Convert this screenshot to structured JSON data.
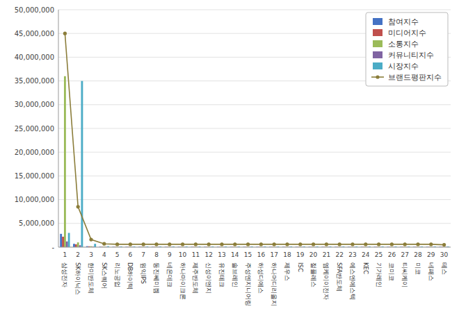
{
  "chart_data": {
    "type": "bar",
    "categories": [
      "1",
      "2",
      "3",
      "4",
      "5",
      "6",
      "7",
      "8",
      "9",
      "10",
      "11",
      "12",
      "13",
      "14",
      "15",
      "16",
      "17",
      "18",
      "19",
      "20",
      "21",
      "22",
      "23",
      "24",
      "25",
      "26",
      "27",
      "28",
      "29",
      "30"
    ],
    "annotations": [
      "삼성전자",
      "SK하이닉스",
      "한미반도체",
      "SK스퀘어",
      "리노공업",
      "DB하이텍",
      "원익IPS",
      "동진쎄미켐",
      "네온데크",
      "하나마이크론",
      "제주반도체",
      "신성이엔지",
      "유진테크",
      "솔브레인",
      "주성엔지니어링",
      "하성디에스",
      "하나머디리올지",
      "제우스",
      "ISC",
      "절플레스",
      "엠케이이전자",
      "SFA반도체",
      "에스엔에스텍",
      "KEC",
      "기가레인",
      "코미코",
      "티씨케이",
      "미코",
      "네패스",
      "테스"
    ],
    "series": [
      {
        "name": "참여지수",
        "color": "#4472C4",
        "values": [
          2800000,
          700000,
          200000,
          100000,
          80000,
          80000,
          80000,
          80000,
          80000,
          80000,
          80000,
          80000,
          80000,
          80000,
          80000,
          80000,
          80000,
          80000,
          80000,
          80000,
          80000,
          80000,
          80000,
          80000,
          80000,
          80000,
          80000,
          80000,
          80000,
          80000
        ]
      },
      {
        "name": "미디어지수",
        "color": "#C0504D",
        "values": [
          2200000,
          600000,
          180000,
          80000,
          70000,
          70000,
          70000,
          70000,
          70000,
          70000,
          70000,
          70000,
          70000,
          70000,
          70000,
          70000,
          70000,
          70000,
          70000,
          70000,
          70000,
          70000,
          70000,
          70000,
          70000,
          70000,
          70000,
          70000,
          70000,
          70000
        ]
      },
      {
        "name": "소통지수",
        "color": "#9BBB59",
        "values": [
          36000000,
          1000000,
          200000,
          100000,
          80000,
          80000,
          80000,
          80000,
          80000,
          80000,
          80000,
          80000,
          80000,
          80000,
          80000,
          80000,
          80000,
          80000,
          80000,
          80000,
          80000,
          80000,
          80000,
          80000,
          80000,
          80000,
          80000,
          80000,
          80000,
          80000
        ]
      },
      {
        "name": "커뮤니티지수",
        "color": "#8064A2",
        "values": [
          1200000,
          400000,
          120000,
          70000,
          60000,
          60000,
          60000,
          60000,
          60000,
          60000,
          60000,
          60000,
          60000,
          60000,
          60000,
          60000,
          60000,
          60000,
          60000,
          60000,
          60000,
          60000,
          60000,
          60000,
          60000,
          60000,
          60000,
          60000,
          60000,
          60000
        ]
      },
      {
        "name": "시장지수",
        "color": "#4BACC6",
        "values": [
          3000000,
          35000000,
          700000,
          200000,
          150000,
          150000,
          150000,
          150000,
          150000,
          150000,
          150000,
          150000,
          150000,
          150000,
          150000,
          150000,
          150000,
          150000,
          150000,
          150000,
          150000,
          150000,
          150000,
          150000,
          150000,
          150000,
          150000,
          150000,
          150000,
          150000
        ]
      },
      {
        "name": "브랜드평판지수",
        "color": "#8B7D3A",
        "type": "line",
        "marker": "circle",
        "values": [
          45000000,
          8500000,
          1600000,
          700000,
          600000,
          600000,
          600000,
          600000,
          600000,
          600000,
          600000,
          600000,
          600000,
          600000,
          600000,
          600000,
          600000,
          600000,
          600000,
          600000,
          600000,
          600000,
          600000,
          600000,
          600000,
          600000,
          600000,
          600000,
          600000,
          500000
        ]
      }
    ],
    "ylim": [
      0,
      50000000
    ],
    "yticks": [
      {
        "value": 0,
        "label": "-"
      },
      {
        "value": 5000000,
        "label": "5,000,000"
      },
      {
        "value": 10000000,
        "label": "10,000,000"
      },
      {
        "value": 15000000,
        "label": "15,000,000"
      },
      {
        "value": 20000000,
        "label": "20,000,000"
      },
      {
        "value": 25000000,
        "label": "25,000,000"
      },
      {
        "value": 30000000,
        "label": "30,000,000"
      },
      {
        "value": 35000000,
        "label": "35,000,000"
      },
      {
        "value": 40000000,
        "label": "40,000,000"
      },
      {
        "value": 45000000,
        "label": "45,000,000"
      },
      {
        "value": 50000000,
        "label": "50,000,000"
      }
    ],
    "grid": true,
    "legend": "upper right"
  }
}
